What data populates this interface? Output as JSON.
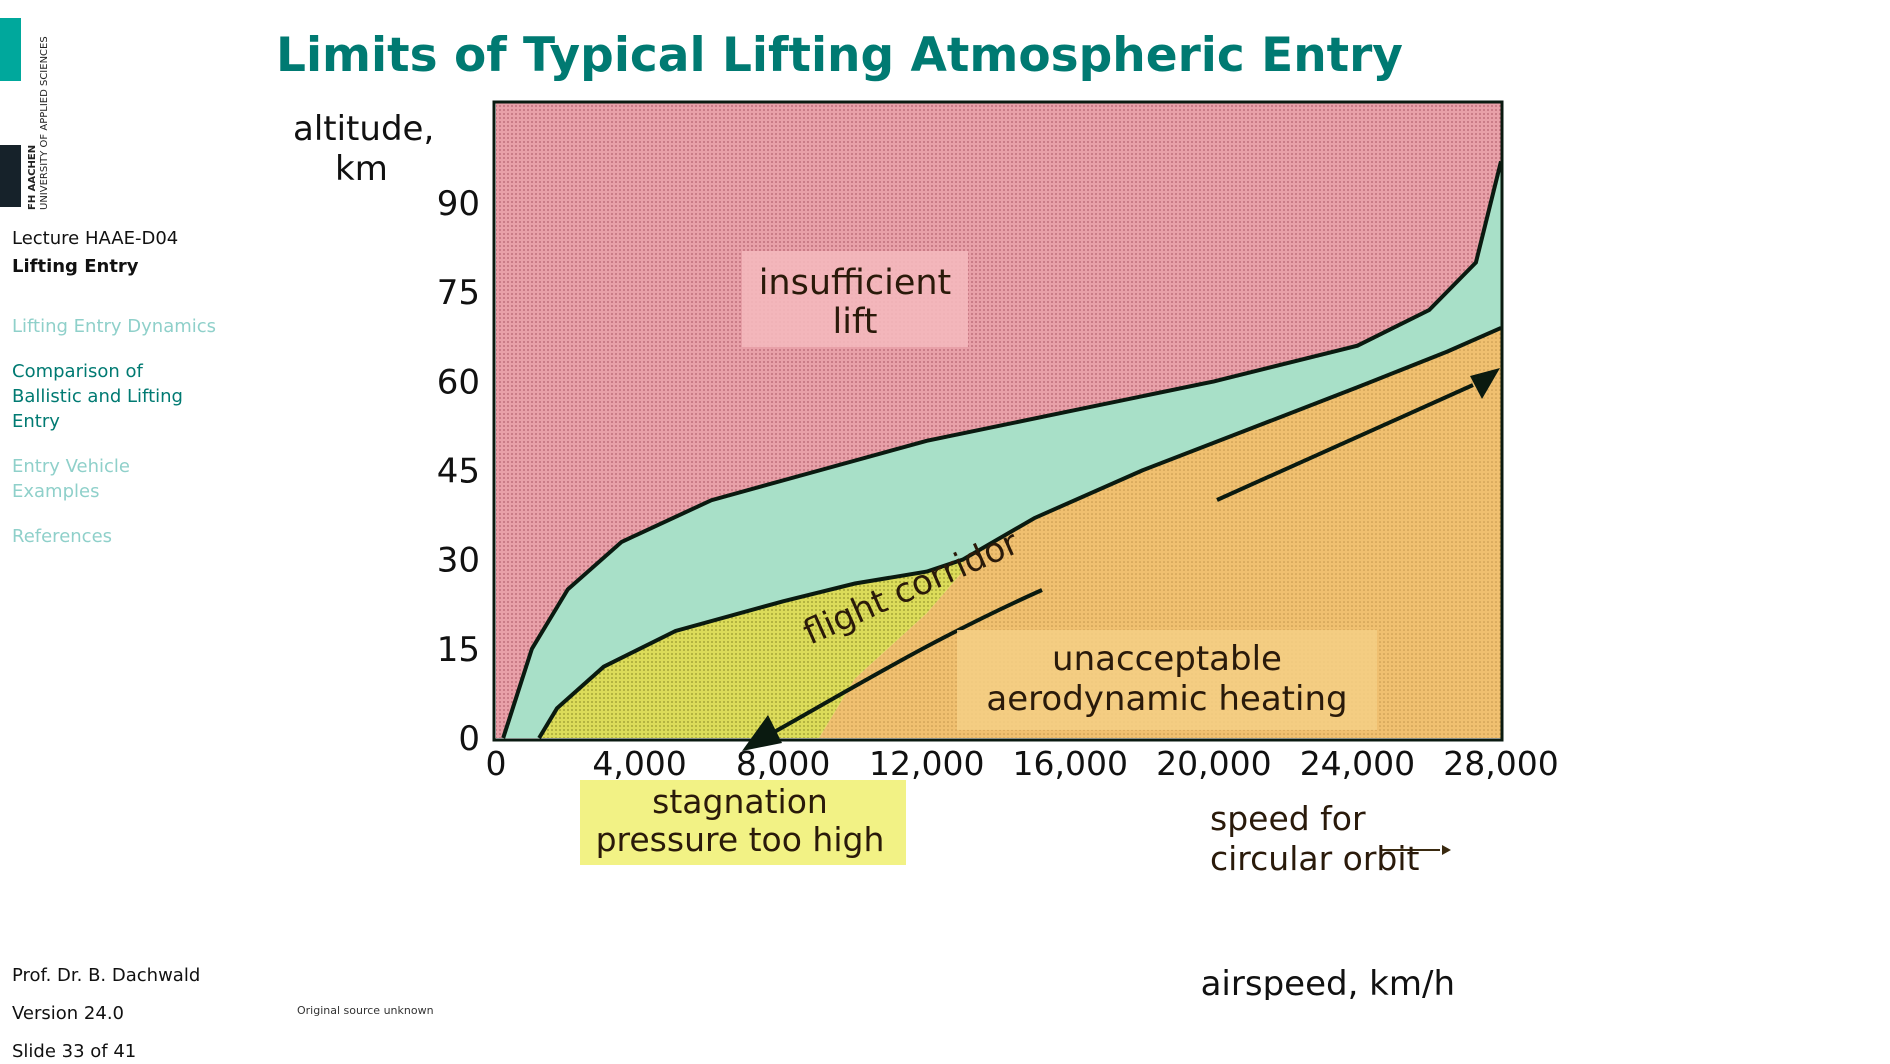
{
  "logo": {
    "line1": "FH AACHEN",
    "line2": "UNIVERSITY OF APPLIED SCIENCES",
    "colors": {
      "teal": "#00a89c",
      "dark": "#16222a"
    }
  },
  "sidebar": {
    "lecture_id": "Lecture HAAE-D04",
    "lecture_title": "Lifting Entry",
    "nav": [
      {
        "label": "Lifting Entry Dynamics",
        "active": false
      },
      {
        "label": "Comparison of Ballistic and Lifting Entry",
        "active": true
      },
      {
        "label": "Entry Vehicle Examples",
        "active": false
      },
      {
        "label": "References",
        "active": false
      }
    ],
    "author": "Prof. Dr. B. Dachwald",
    "version": "Version 24.0",
    "slide": "Slide 33 of 41"
  },
  "main": {
    "title": "Limits of Typical Lifting Atmospheric Entry",
    "source_note": "Original source unknown"
  },
  "colors": {
    "accent": "#007a72",
    "insufficient_lift": "#e8a0a8",
    "flight_corridor": "#a8e0c8",
    "heating": "#f0c070",
    "stagnation": "#e0e060"
  },
  "chart_data": {
    "type": "area",
    "ylabel_line1": "altitude,",
    "ylabel_line2": "km",
    "xlabel": "airspeed,  km/h",
    "y_ticks": [
      "0",
      "15",
      "30",
      "45",
      "60",
      "75",
      "90"
    ],
    "x_ticks": [
      "0",
      "4,000",
      "8,000",
      "12,000",
      "16,000",
      "20,000",
      "24,000",
      "28,000"
    ],
    "xlim": [
      0,
      28000
    ],
    "ylim": [
      0,
      107
    ],
    "upper_boundary": {
      "x": [
        200,
        1000,
        2000,
        3500,
        6000,
        9000,
        12000,
        16000,
        20000,
        24000,
        26000,
        27300,
        28000
      ],
      "y": [
        0,
        15,
        25,
        33,
        40,
        45,
        50,
        55,
        60,
        66,
        72,
        80,
        97
      ]
    },
    "lower_boundary": {
      "x": [
        1200,
        1700,
        3000,
        5000,
        8000,
        10000,
        12000,
        13000,
        15000,
        18000,
        21000,
        24000,
        26500,
        28000
      ],
      "y": [
        0,
        5,
        12,
        18,
        23,
        26,
        28,
        30,
        37,
        45,
        52,
        59,
        65,
        69
      ]
    },
    "stagnation_limit": {
      "x": [
        9000,
        10000,
        12000,
        13000
      ],
      "y": [
        0,
        10,
        21,
        28
      ]
    },
    "labels": {
      "insufficient_lift_line1": "insufficient",
      "insufficient_lift_line2": "lift",
      "flight_corridor": "flight  corridor",
      "heating_line1": "unacceptable",
      "heating_line2": "aerodynamic heating",
      "stagnation_line1": "stagnation",
      "stagnation_line2": "pressure too high",
      "orbit_line1": "speed for",
      "orbit_line2": "circular orbit"
    }
  }
}
